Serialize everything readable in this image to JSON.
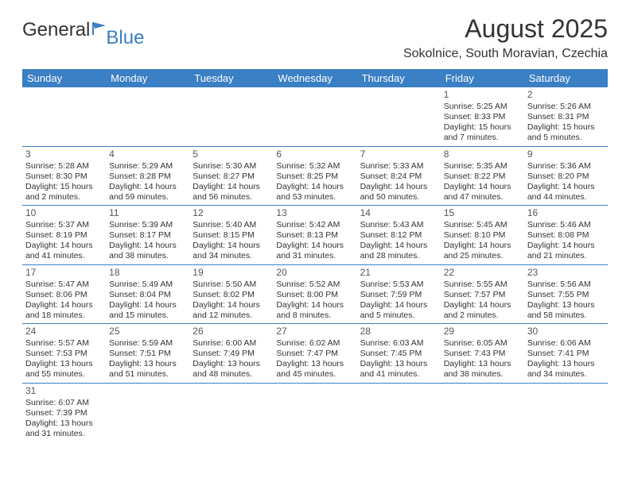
{
  "brand": {
    "part1": "General",
    "part2": "Blue"
  },
  "title": "August 2025",
  "subtitle": "Sokolnice, South Moravian, Czechia",
  "colors": {
    "header_bg": "#3b7fc4",
    "header_text": "#ffffff",
    "rule": "#3b7fc4",
    "text": "#333333",
    "background": "#ffffff"
  },
  "dow": [
    "Sunday",
    "Monday",
    "Tuesday",
    "Wednesday",
    "Thursday",
    "Friday",
    "Saturday"
  ],
  "weeks": [
    [
      {
        "blank": true
      },
      {
        "blank": true
      },
      {
        "blank": true
      },
      {
        "blank": true
      },
      {
        "blank": true
      },
      {
        "day": "1",
        "sunrise": "Sunrise: 5:25 AM",
        "sunset": "Sunset: 8:33 PM",
        "daylight": "Daylight: 15 hours and 7 minutes."
      },
      {
        "day": "2",
        "sunrise": "Sunrise: 5:26 AM",
        "sunset": "Sunset: 8:31 PM",
        "daylight": "Daylight: 15 hours and 5 minutes."
      }
    ],
    [
      {
        "day": "3",
        "sunrise": "Sunrise: 5:28 AM",
        "sunset": "Sunset: 8:30 PM",
        "daylight": "Daylight: 15 hours and 2 minutes."
      },
      {
        "day": "4",
        "sunrise": "Sunrise: 5:29 AM",
        "sunset": "Sunset: 8:28 PM",
        "daylight": "Daylight: 14 hours and 59 minutes."
      },
      {
        "day": "5",
        "sunrise": "Sunrise: 5:30 AM",
        "sunset": "Sunset: 8:27 PM",
        "daylight": "Daylight: 14 hours and 56 minutes."
      },
      {
        "day": "6",
        "sunrise": "Sunrise: 5:32 AM",
        "sunset": "Sunset: 8:25 PM",
        "daylight": "Daylight: 14 hours and 53 minutes."
      },
      {
        "day": "7",
        "sunrise": "Sunrise: 5:33 AM",
        "sunset": "Sunset: 8:24 PM",
        "daylight": "Daylight: 14 hours and 50 minutes."
      },
      {
        "day": "8",
        "sunrise": "Sunrise: 5:35 AM",
        "sunset": "Sunset: 8:22 PM",
        "daylight": "Daylight: 14 hours and 47 minutes."
      },
      {
        "day": "9",
        "sunrise": "Sunrise: 5:36 AM",
        "sunset": "Sunset: 8:20 PM",
        "daylight": "Daylight: 14 hours and 44 minutes."
      }
    ],
    [
      {
        "day": "10",
        "sunrise": "Sunrise: 5:37 AM",
        "sunset": "Sunset: 8:19 PM",
        "daylight": "Daylight: 14 hours and 41 minutes."
      },
      {
        "day": "11",
        "sunrise": "Sunrise: 5:39 AM",
        "sunset": "Sunset: 8:17 PM",
        "daylight": "Daylight: 14 hours and 38 minutes."
      },
      {
        "day": "12",
        "sunrise": "Sunrise: 5:40 AM",
        "sunset": "Sunset: 8:15 PM",
        "daylight": "Daylight: 14 hours and 34 minutes."
      },
      {
        "day": "13",
        "sunrise": "Sunrise: 5:42 AM",
        "sunset": "Sunset: 8:13 PM",
        "daylight": "Daylight: 14 hours and 31 minutes."
      },
      {
        "day": "14",
        "sunrise": "Sunrise: 5:43 AM",
        "sunset": "Sunset: 8:12 PM",
        "daylight": "Daylight: 14 hours and 28 minutes."
      },
      {
        "day": "15",
        "sunrise": "Sunrise: 5:45 AM",
        "sunset": "Sunset: 8:10 PM",
        "daylight": "Daylight: 14 hours and 25 minutes."
      },
      {
        "day": "16",
        "sunrise": "Sunrise: 5:46 AM",
        "sunset": "Sunset: 8:08 PM",
        "daylight": "Daylight: 14 hours and 21 minutes."
      }
    ],
    [
      {
        "day": "17",
        "sunrise": "Sunrise: 5:47 AM",
        "sunset": "Sunset: 8:06 PM",
        "daylight": "Daylight: 14 hours and 18 minutes."
      },
      {
        "day": "18",
        "sunrise": "Sunrise: 5:49 AM",
        "sunset": "Sunset: 8:04 PM",
        "daylight": "Daylight: 14 hours and 15 minutes."
      },
      {
        "day": "19",
        "sunrise": "Sunrise: 5:50 AM",
        "sunset": "Sunset: 8:02 PM",
        "daylight": "Daylight: 14 hours and 12 minutes."
      },
      {
        "day": "20",
        "sunrise": "Sunrise: 5:52 AM",
        "sunset": "Sunset: 8:00 PM",
        "daylight": "Daylight: 14 hours and 8 minutes."
      },
      {
        "day": "21",
        "sunrise": "Sunrise: 5:53 AM",
        "sunset": "Sunset: 7:59 PM",
        "daylight": "Daylight: 14 hours and 5 minutes."
      },
      {
        "day": "22",
        "sunrise": "Sunrise: 5:55 AM",
        "sunset": "Sunset: 7:57 PM",
        "daylight": "Daylight: 14 hours and 2 minutes."
      },
      {
        "day": "23",
        "sunrise": "Sunrise: 5:56 AM",
        "sunset": "Sunset: 7:55 PM",
        "daylight": "Daylight: 13 hours and 58 minutes."
      }
    ],
    [
      {
        "day": "24",
        "sunrise": "Sunrise: 5:57 AM",
        "sunset": "Sunset: 7:53 PM",
        "daylight": "Daylight: 13 hours and 55 minutes."
      },
      {
        "day": "25",
        "sunrise": "Sunrise: 5:59 AM",
        "sunset": "Sunset: 7:51 PM",
        "daylight": "Daylight: 13 hours and 51 minutes."
      },
      {
        "day": "26",
        "sunrise": "Sunrise: 6:00 AM",
        "sunset": "Sunset: 7:49 PM",
        "daylight": "Daylight: 13 hours and 48 minutes."
      },
      {
        "day": "27",
        "sunrise": "Sunrise: 6:02 AM",
        "sunset": "Sunset: 7:47 PM",
        "daylight": "Daylight: 13 hours and 45 minutes."
      },
      {
        "day": "28",
        "sunrise": "Sunrise: 6:03 AM",
        "sunset": "Sunset: 7:45 PM",
        "daylight": "Daylight: 13 hours and 41 minutes."
      },
      {
        "day": "29",
        "sunrise": "Sunrise: 6:05 AM",
        "sunset": "Sunset: 7:43 PM",
        "daylight": "Daylight: 13 hours and 38 minutes."
      },
      {
        "day": "30",
        "sunrise": "Sunrise: 6:06 AM",
        "sunset": "Sunset: 7:41 PM",
        "daylight": "Daylight: 13 hours and 34 minutes."
      }
    ],
    [
      {
        "day": "31",
        "sunrise": "Sunrise: 6:07 AM",
        "sunset": "Sunset: 7:39 PM",
        "daylight": "Daylight: 13 hours and 31 minutes."
      },
      {
        "blank": true
      },
      {
        "blank": true
      },
      {
        "blank": true
      },
      {
        "blank": true
      },
      {
        "blank": true
      },
      {
        "blank": true
      }
    ]
  ]
}
